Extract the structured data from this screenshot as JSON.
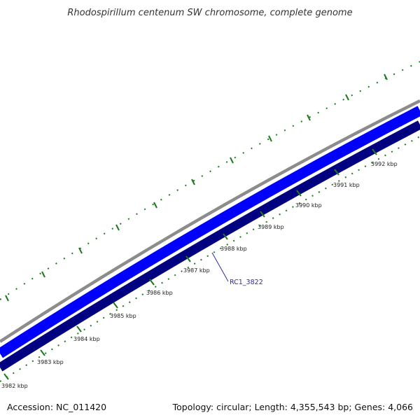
{
  "title": "Rhodospirillum centenum SW chromosome, complete genome",
  "footer": {
    "accession": "Accession: NC_011420",
    "summary": "Topology: circular; Length: 4,355,543 bp; Genes: 4,066"
  },
  "genome": {
    "length_bp": 4355543,
    "topology": "circular",
    "genes": 4066,
    "visible_range_kbp": [
      3982,
      3992
    ]
  },
  "tick_labels": [
    "3982 kbp",
    "3983 kbp",
    "3984 kbp",
    "3985 kbp",
    "3986 kbp",
    "3987 kbp",
    "3988 kbp",
    "3989 kbp",
    "3990 kbp",
    "3991 kbp",
    "3992 kbp"
  ],
  "gene_annotation": {
    "label": "RC1_3822"
  },
  "colors": {
    "backbone": "#8c8c8c",
    "forward_strand": "#0000ff",
    "reverse_strand": "#000080",
    "ticks": "#1e7a1e",
    "gene_label": "#2a2aa8"
  }
}
